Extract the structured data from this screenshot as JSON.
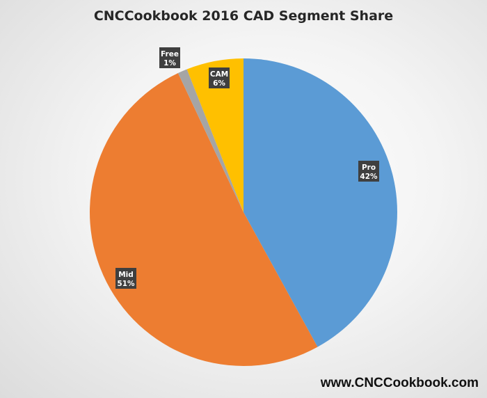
{
  "chart_data": {
    "type": "pie",
    "title": "CNCCookbook 2016 CAD Segment Share",
    "slices": [
      {
        "label": "Pro",
        "value": 42,
        "display": "42%",
        "color": "#5b9bd5"
      },
      {
        "label": "Mid",
        "value": 51,
        "display": "51%",
        "color": "#ed7d31"
      },
      {
        "label": "Free",
        "value": 1,
        "display": "1%",
        "color": "#a5a5a5"
      },
      {
        "label": "CAM",
        "value": 6,
        "display": "6%",
        "color": "#ffc000"
      }
    ],
    "start": "12 o'clock",
    "direction": "clockwise",
    "legend": "none",
    "data_labels": "category and percentage"
  },
  "watermark": "www.CNCCookbook.com"
}
